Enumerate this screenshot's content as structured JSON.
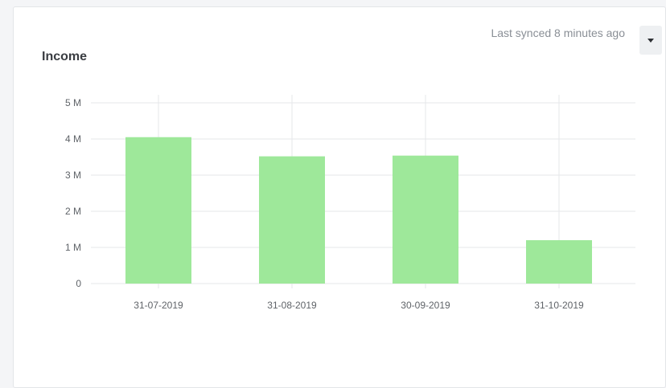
{
  "header": {
    "sync_text": "Last synced 8 minutes ago",
    "dropdown_icon": "caret-down-icon"
  },
  "chart_data": {
    "type": "bar",
    "title": "Income",
    "categories": [
      "31-07-2019",
      "31-08-2019",
      "30-09-2019",
      "31-10-2019"
    ],
    "values": [
      4050000,
      3520000,
      3540000,
      1200000
    ],
    "ylim": [
      0,
      5000000
    ],
    "yticks": [
      {
        "value": 0,
        "label": "0"
      },
      {
        "value": 1000000,
        "label": "1 M"
      },
      {
        "value": 2000000,
        "label": "2 M"
      },
      {
        "value": 3000000,
        "label": "3 M"
      },
      {
        "value": 4000000,
        "label": "4 M"
      },
      {
        "value": 5000000,
        "label": "5 M"
      }
    ],
    "grid": true,
    "bar_color": "#9ee89a",
    "grid_color": "#e6e7ea"
  }
}
